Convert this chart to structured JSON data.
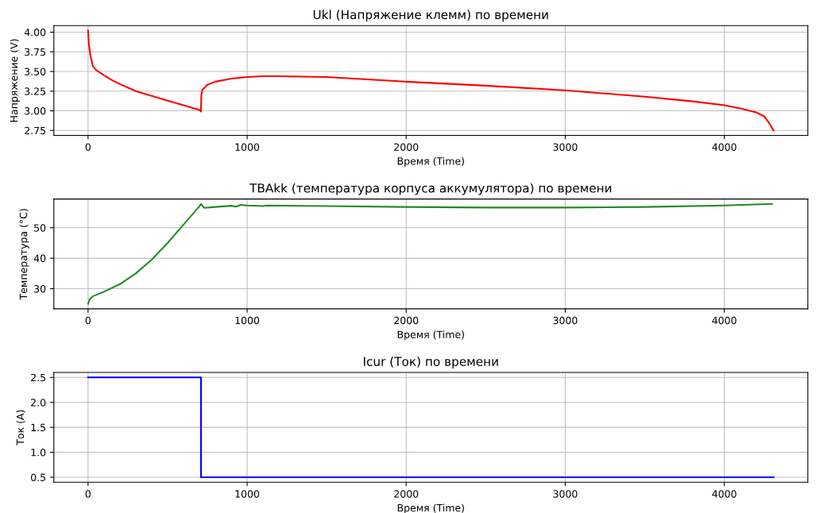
{
  "chart_data": [
    {
      "type": "line",
      "title": "Ukl (Напряжение клемм) по времени",
      "xlabel": "Время (Time)",
      "ylabel": "Напряжение (V)",
      "grid": true,
      "xlim": [
        -215,
        4525
      ],
      "xticks": [
        0,
        1000,
        2000,
        3000,
        4000
      ],
      "ylim": [
        2.687,
        4.083
      ],
      "yticks": [
        {
          "value": 2.75,
          "label": "2.75"
        },
        {
          "value": 3.0,
          "label": "3.00"
        },
        {
          "value": 3.25,
          "label": "3.25"
        },
        {
          "value": 3.5,
          "label": "3.50"
        },
        {
          "value": 3.75,
          "label": "3.75"
        },
        {
          "value": 4.0,
          "label": "4.00"
        }
      ],
      "series": [
        {
          "color": "#ff0000",
          "x": [
            0,
            5,
            15,
            30,
            50,
            100,
            150,
            200,
            300,
            400,
            500,
            600,
            700,
            710,
            712,
            720,
            750,
            800,
            900,
            1000,
            1100,
            1200,
            1500,
            2000,
            2500,
            3000,
            3500,
            3800,
            4000,
            4100,
            4200,
            4250,
            4280,
            4300,
            4310
          ],
          "values": [
            4.02,
            3.85,
            3.7,
            3.57,
            3.52,
            3.45,
            3.39,
            3.34,
            3.25,
            3.19,
            3.13,
            3.07,
            3.01,
            2.99,
            3.2,
            3.27,
            3.33,
            3.37,
            3.41,
            3.43,
            3.44,
            3.44,
            3.43,
            3.37,
            3.32,
            3.26,
            3.18,
            3.12,
            3.07,
            3.03,
            2.98,
            2.93,
            2.85,
            2.78,
            2.75
          ]
        }
      ]
    },
    {
      "type": "line",
      "title": "TBAkk (температура корпуса аккумулятора) по времени",
      "xlabel": "Время (Time)",
      "ylabel": "Температура (°C)",
      "grid": true,
      "xlim": [
        -215,
        4525
      ],
      "xticks": [
        0,
        1000,
        2000,
        3000,
        4000
      ],
      "ylim": [
        23.4,
        59.4
      ],
      "yticks": [
        30,
        40,
        50
      ],
      "series": [
        {
          "color": "#228b22",
          "x": [
            0,
            10,
            30,
            100,
            200,
            300,
            400,
            500,
            600,
            700,
            710,
            730,
            800,
            900,
            930,
            960,
            1000,
            1100,
            1120,
            1500,
            2000,
            2500,
            3000,
            3500,
            4000,
            4300
          ],
          "values": [
            25,
            26.5,
            27.5,
            29,
            31.5,
            35,
            39.5,
            45,
            51,
            57,
            57.8,
            56.5,
            56.8,
            57.2,
            56.9,
            57.5,
            57.3,
            57.1,
            57.3,
            57.1,
            56.8,
            56.6,
            56.6,
            56.8,
            57.3,
            57.8
          ]
        }
      ]
    },
    {
      "type": "step",
      "title": "Icur (Ток) по времени",
      "xlabel": "Время (Time)",
      "ylabel": "Ток (A)",
      "grid": true,
      "xlim": [
        -215,
        4525
      ],
      "xticks": [
        0,
        1000,
        2000,
        3000,
        4000
      ],
      "ylim": [
        0.4,
        2.6
      ],
      "yticks": [
        {
          "value": 0.5,
          "label": "0.5"
        },
        {
          "value": 1.0,
          "label": "1.0"
        },
        {
          "value": 1.5,
          "label": "1.5"
        },
        {
          "value": 2.0,
          "label": "2.0"
        },
        {
          "value": 2.5,
          "label": "2.5"
        }
      ],
      "series": [
        {
          "color": "#0000ff",
          "x": [
            0,
            710,
            4310
          ],
          "values": [
            2.5,
            0.5,
            0.5
          ]
        }
      ]
    }
  ]
}
